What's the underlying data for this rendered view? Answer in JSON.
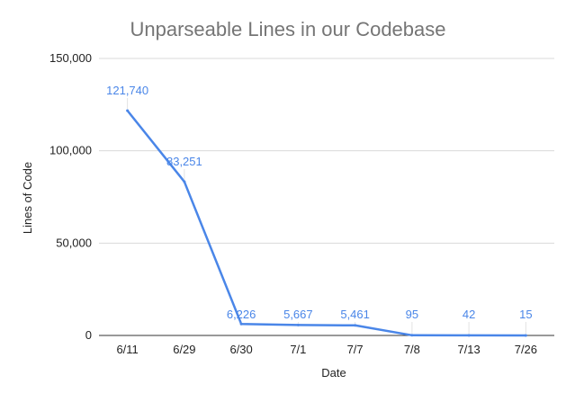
{
  "chart_data": {
    "type": "line",
    "title": "Unparseable Lines in our Codebase",
    "xlabel": "Date",
    "ylabel": "Lines of Code",
    "categories": [
      "6/11",
      "6/29",
      "6/30",
      "7/1",
      "7/7",
      "7/8",
      "7/13",
      "7/26"
    ],
    "values": [
      121740,
      83251,
      6226,
      5667,
      5461,
      95,
      42,
      15
    ],
    "data_labels": [
      "121,740",
      "83,251",
      "6,226",
      "5,667",
      "5,461",
      "95",
      "42",
      "15"
    ],
    "ylim": [
      0,
      150000
    ],
    "yticks": [
      0,
      50000,
      100000,
      150000
    ],
    "ytick_labels": [
      "0",
      "50,000",
      "100,000",
      "150,000"
    ],
    "grid": true,
    "legend": "none",
    "colors": {
      "line": "#4a86e8",
      "label": "#4a86e8",
      "title": "#757575",
      "grid": "#d9d9d9"
    }
  }
}
